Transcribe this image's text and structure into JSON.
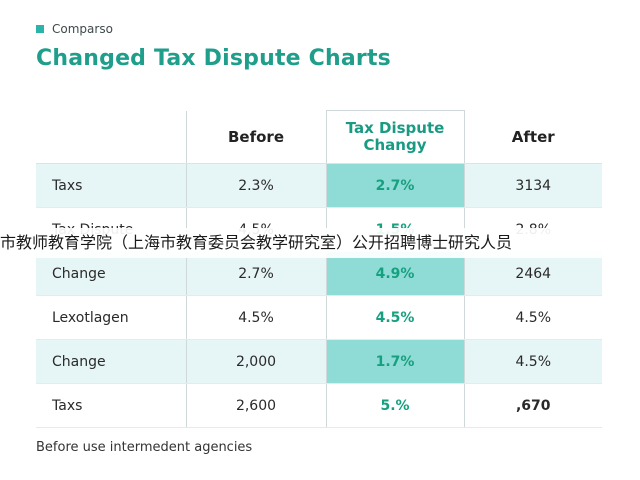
{
  "brand": {
    "label": "Comparso",
    "icon": "square-icon",
    "accent_color": "#2bb5a8"
  },
  "chart_data": {
    "type": "table",
    "title": "Changed Tax Dispute Charts",
    "columns": [
      "",
      "Before",
      "Tax Dispute Changy",
      "After"
    ],
    "highlight_column": 2,
    "rows": [
      {
        "label": "Taxs",
        "before": "2.3%",
        "highlight": "2.7%",
        "after": "3134",
        "shaded": true
      },
      {
        "label": "Tax Dispute",
        "before": "4.5%",
        "highlight": "1.5%",
        "after": "2.8%",
        "shaded": false
      },
      {
        "label": "Change",
        "before": "2.7%",
        "highlight": "4.9%",
        "after": "2464",
        "shaded": true
      },
      {
        "label": "Lexotlagen",
        "before": "4.5%",
        "highlight": "4.5%",
        "after": "4.5%",
        "shaded": false
      },
      {
        "label": "Change",
        "before": "2,000",
        "highlight": "1.7%",
        "after": "4.5%",
        "shaded": true
      },
      {
        "label": "Taxs",
        "before": "2,600",
        "highlight": "5.%",
        "after": ",670",
        "shaded": false
      }
    ],
    "footnote": "Before use intermedent agencies",
    "colors": {
      "title": "#1f9e8c",
      "highlight_header": "#1a9a83",
      "highlight_cell": "#8fdcd6",
      "row_shade": "#e6f5f5"
    }
  },
  "overlay": {
    "text": "市教师教育学院（上海市教育委员会教学研究室）公开招聘博士研究人员"
  }
}
